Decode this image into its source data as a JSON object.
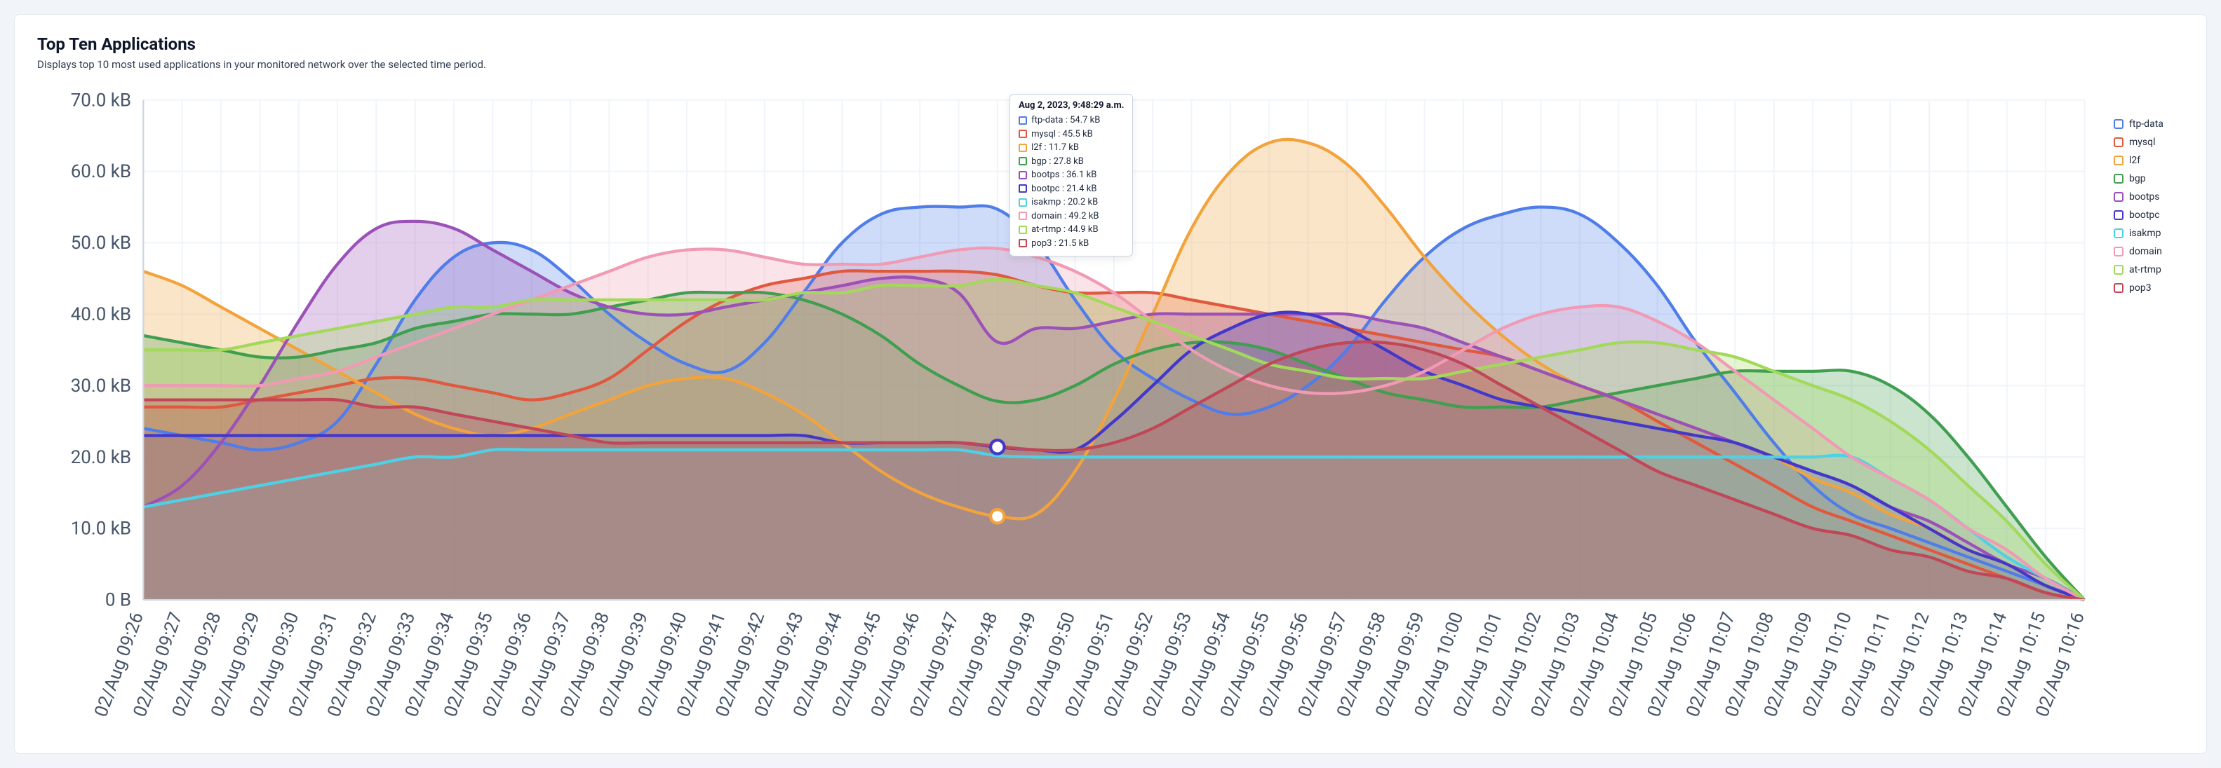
{
  "card": {
    "title": "Top Ten Applications",
    "subtitle": "Displays top 10 most used applications in your monitored network over the selected time period."
  },
  "chart": {
    "type": "area",
    "background_color": "#ffffff",
    "grid_color": "#f1f5f9",
    "axis_color": "#cbd5e1",
    "tick_color": "#475569",
    "fill_opacity": 0.28,
    "line_width": 2,
    "yaxis": {
      "min": 0,
      "max": 70,
      "ticks": [
        0,
        10,
        20,
        30,
        40,
        50,
        60,
        70
      ],
      "tick_labels": [
        "0 B",
        "10.0 kB",
        "20.0 kB",
        "30.0 kB",
        "40.0 kB",
        "50.0 kB",
        "60.0 kB",
        "70.0 kB"
      ]
    },
    "xaxis": {
      "labels": [
        "02/Aug 09:26",
        "02/Aug 09:27",
        "02/Aug 09:28",
        "02/Aug 09:29",
        "02/Aug 09:30",
        "02/Aug 09:31",
        "02/Aug 09:32",
        "02/Aug 09:33",
        "02/Aug 09:34",
        "02/Aug 09:35",
        "02/Aug 09:36",
        "02/Aug 09:37",
        "02/Aug 09:38",
        "02/Aug 09:39",
        "02/Aug 09:40",
        "02/Aug 09:41",
        "02/Aug 09:42",
        "02/Aug 09:43",
        "02/Aug 09:44",
        "02/Aug 09:45",
        "02/Aug 09:46",
        "02/Aug 09:47",
        "02/Aug 09:48",
        "02/Aug 09:49",
        "02/Aug 09:50",
        "02/Aug 09:51",
        "02/Aug 09:52",
        "02/Aug 09:53",
        "02/Aug 09:54",
        "02/Aug 09:55",
        "02/Aug 09:56",
        "02/Aug 09:57",
        "02/Aug 09:58",
        "02/Aug 09:59",
        "02/Aug 10:00",
        "02/Aug 10:01",
        "02/Aug 10:02",
        "02/Aug 10:03",
        "02/Aug 10:04",
        "02/Aug 10:05",
        "02/Aug 10:06",
        "02/Aug 10:07",
        "02/Aug 10:08",
        "02/Aug 10:09",
        "02/Aug 10:10",
        "02/Aug 10:11",
        "02/Aug 10:12",
        "02/Aug 10:13",
        "02/Aug 10:14",
        "02/Aug 10:15",
        "02/Aug 10:16"
      ]
    },
    "series": [
      {
        "name": "ftp-data",
        "color": "#4f7de9",
        "values": [
          24,
          23,
          22,
          21,
          22,
          25,
          33,
          42,
          48,
          50,
          49,
          45,
          40,
          36,
          33,
          32,
          36,
          43,
          50,
          54,
          55,
          55,
          54.7,
          50,
          42,
          35,
          31,
          28,
          26,
          27,
          30,
          35,
          42,
          48,
          52,
          54,
          55,
          54,
          50,
          44,
          36,
          29,
          22,
          16,
          12,
          10,
          8,
          6,
          4,
          2,
          0
        ]
      },
      {
        "name": "mysql",
        "color": "#e0593f",
        "values": [
          27,
          27,
          27,
          28,
          29,
          30,
          31,
          31,
          30,
          29,
          28,
          29,
          31,
          35,
          39,
          42,
          44,
          45,
          46,
          46,
          46,
          46,
          45.5,
          44,
          43,
          43,
          43,
          42,
          41,
          40,
          39,
          38,
          37,
          36,
          35,
          34,
          32,
          30,
          28,
          25,
          22,
          19,
          16,
          13,
          11,
          9,
          7,
          5,
          3,
          1,
          0
        ]
      },
      {
        "name": "l2f",
        "color": "#f2a33c",
        "values": [
          46,
          44,
          41,
          38,
          35,
          32,
          29,
          26,
          24,
          23,
          24,
          26,
          28,
          30,
          31,
          31,
          29,
          26,
          22,
          18,
          15,
          13,
          11.7,
          12,
          18,
          28,
          40,
          52,
          60,
          64,
          64,
          61,
          55,
          48,
          42,
          37,
          33,
          30,
          28,
          26,
          24,
          22,
          20,
          17,
          15,
          12,
          10,
          7,
          5,
          2,
          0
        ]
      },
      {
        "name": "bgp",
        "color": "#3f9f4f",
        "values": [
          37,
          36,
          35,
          34,
          34,
          35,
          36,
          38,
          39,
          40,
          40,
          40,
          41,
          42,
          43,
          43,
          43,
          42,
          40,
          37,
          33,
          30,
          27.8,
          28,
          30,
          33,
          35,
          36,
          36,
          35,
          33,
          31,
          29,
          28,
          27,
          27,
          27,
          28,
          29,
          30,
          31,
          32,
          32,
          32,
          32,
          30,
          26,
          20,
          13,
          6,
          0
        ]
      },
      {
        "name": "bootps",
        "color": "#9b51b7",
        "values": [
          13,
          16,
          22,
          30,
          39,
          47,
          52,
          53,
          52,
          49,
          46,
          43,
          41,
          40,
          40,
          41,
          42,
          43,
          44,
          45,
          45,
          43,
          36.1,
          38,
          38,
          39,
          40,
          40,
          40,
          40,
          40,
          40,
          39,
          38,
          36,
          34,
          32,
          30,
          28,
          26,
          24,
          22,
          20,
          18,
          16,
          13,
          11,
          8,
          5,
          3,
          0
        ]
      },
      {
        "name": "bootpc",
        "color": "#4338ca",
        "values": [
          23,
          23,
          23,
          23,
          23,
          23,
          23,
          23,
          23,
          23,
          23,
          23,
          23,
          23,
          23,
          23,
          23,
          23,
          22,
          22,
          22,
          22,
          21.4,
          21,
          21,
          25,
          30,
          35,
          38,
          40,
          40,
          38,
          35,
          32,
          30,
          28,
          27,
          26,
          25,
          24,
          23,
          22,
          20,
          18,
          16,
          13,
          10,
          7,
          5,
          2,
          0
        ]
      },
      {
        "name": "isakmp",
        "color": "#4fd1e5",
        "values": [
          13,
          14,
          15,
          16,
          17,
          18,
          19,
          20,
          20,
          21,
          21,
          21,
          21,
          21,
          21,
          21,
          21,
          21,
          21,
          21,
          21,
          21,
          20.2,
          20,
          20,
          20,
          20,
          20,
          20,
          20,
          20,
          20,
          20,
          20,
          20,
          20,
          20,
          20,
          20,
          20,
          20,
          20,
          20,
          20,
          20,
          17,
          14,
          10,
          6,
          3,
          0
        ]
      },
      {
        "name": "domain",
        "color": "#f19ab4",
        "values": [
          30,
          30,
          30,
          30,
          31,
          32,
          34,
          36,
          38,
          40,
          42,
          44,
          46,
          48,
          49,
          49,
          48,
          47,
          47,
          47,
          48,
          49,
          49.2,
          48,
          46,
          43,
          39,
          35,
          32,
          30,
          29,
          29,
          30,
          32,
          35,
          38,
          40,
          41,
          41,
          39,
          36,
          32,
          28,
          24,
          20,
          17,
          14,
          10,
          7,
          3,
          0
        ]
      },
      {
        "name": "at-rtmp",
        "color": "#a3d95b",
        "values": [
          35,
          35,
          35,
          36,
          37,
          38,
          39,
          40,
          41,
          41,
          42,
          42,
          42,
          42,
          42,
          42,
          42,
          43,
          43,
          44,
          44,
          44,
          44.9,
          44,
          43,
          41,
          39,
          37,
          35,
          33,
          32,
          31,
          31,
          31,
          32,
          33,
          34,
          35,
          36,
          36,
          35,
          34,
          32,
          30,
          28,
          25,
          21,
          16,
          11,
          5,
          0
        ]
      },
      {
        "name": "pop3",
        "color": "#c04757",
        "values": [
          28,
          28,
          28,
          28,
          28,
          28,
          27,
          27,
          26,
          25,
          24,
          23,
          22,
          22,
          22,
          22,
          22,
          22,
          22,
          22,
          22,
          22,
          21.5,
          21,
          21,
          22,
          24,
          27,
          30,
          33,
          35,
          36,
          36,
          35,
          33,
          30,
          27,
          24,
          21,
          18,
          16,
          14,
          12,
          10,
          9,
          7,
          6,
          4,
          3,
          1,
          0
        ]
      }
    ],
    "tooltip": {
      "index": 22,
      "title": "Aug 2, 2023, 9:48:29 a.m.",
      "rows": [
        {
          "color": "#4f7de9",
          "label": "ftp-data : 54.7 kB"
        },
        {
          "color": "#e0593f",
          "label": "mysql : 45.5 kB"
        },
        {
          "color": "#f2a33c",
          "label": "l2f : 11.7 kB"
        },
        {
          "color": "#3f9f4f",
          "label": "bgp : 27.8 kB"
        },
        {
          "color": "#9b51b7",
          "label": "bootps : 36.1 kB"
        },
        {
          "color": "#4338ca",
          "label": "bootpc : 21.4 kB"
        },
        {
          "color": "#4fd1e5",
          "label": "isakmp : 20.2 kB"
        },
        {
          "color": "#f19ab4",
          "label": "domain : 49.2 kB"
        },
        {
          "color": "#a3d95b",
          "label": "at-rtmp : 44.9 kB"
        },
        {
          "color": "#c04757",
          "label": "pop3 : 21.5 kB"
        }
      ]
    }
  }
}
